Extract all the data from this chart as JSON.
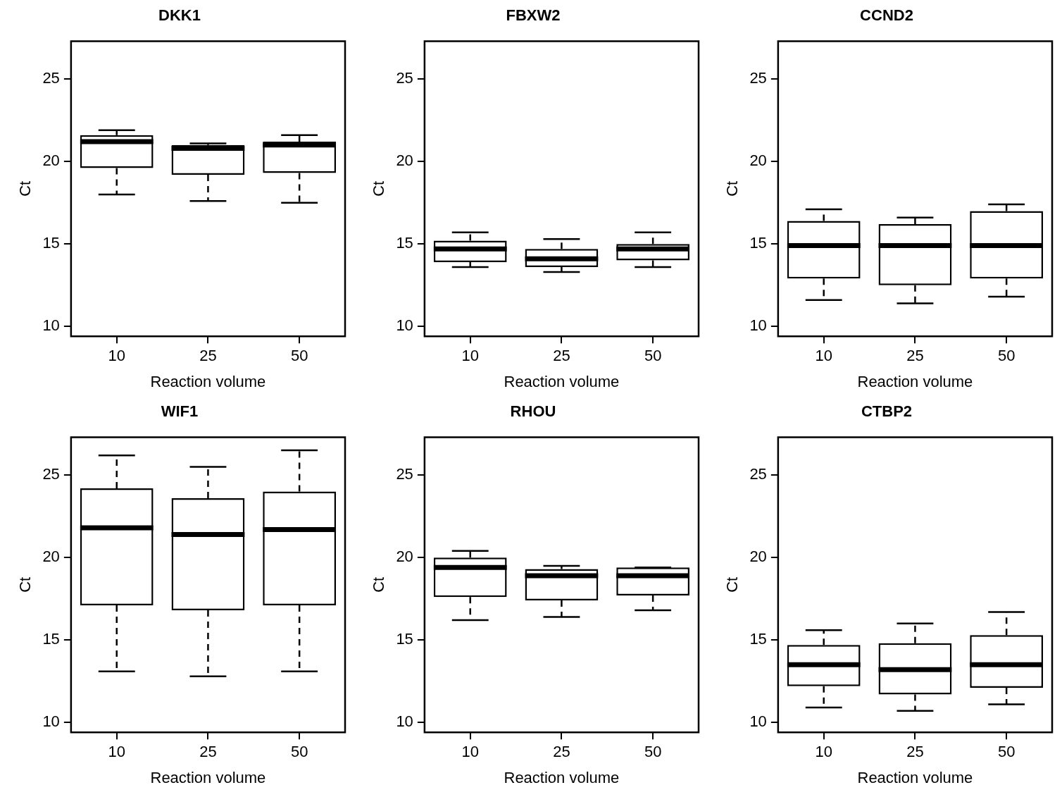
{
  "chart_data": [
    {
      "type": "box",
      "title": "DKK1",
      "xlabel": "Reaction volume",
      "ylabel": "Ct",
      "categories": [
        "10",
        "25",
        "50"
      ],
      "ylim": [
        9.4,
        27.3
      ],
      "yticks": [
        10,
        15,
        20,
        25
      ],
      "boxes": [
        {
          "low": 18.0,
          "q1": 19.6,
          "median": 21.2,
          "q3": 21.6,
          "high": 21.9
        },
        {
          "low": 17.6,
          "q1": 19.2,
          "median": 20.8,
          "q3": 21.0,
          "high": 21.1
        },
        {
          "low": 17.5,
          "q1": 19.3,
          "median": 21.0,
          "q3": 21.2,
          "high": 21.6
        }
      ]
    },
    {
      "type": "box",
      "title": "FBXW2",
      "xlabel": "Reaction volume",
      "ylabel": "Ct",
      "categories": [
        "10",
        "25",
        "50"
      ],
      "ylim": [
        9.4,
        27.3
      ],
      "yticks": [
        10,
        15,
        20,
        25
      ],
      "boxes": [
        {
          "low": 13.6,
          "q1": 13.9,
          "median": 14.7,
          "q3": 15.2,
          "high": 15.7
        },
        {
          "low": 13.3,
          "q1": 13.6,
          "median": 14.1,
          "q3": 14.7,
          "high": 15.3
        },
        {
          "low": 13.6,
          "q1": 14.0,
          "median": 14.7,
          "q3": 15.0,
          "high": 15.7
        }
      ]
    },
    {
      "type": "box",
      "title": "CCND2",
      "xlabel": "Reaction volume",
      "ylabel": "Ct",
      "categories": [
        "10",
        "25",
        "50"
      ],
      "ylim": [
        9.4,
        27.3
      ],
      "yticks": [
        10,
        15,
        20,
        25
      ],
      "boxes": [
        {
          "low": 11.6,
          "q1": 12.9,
          "median": 14.9,
          "q3": 16.4,
          "high": 17.1
        },
        {
          "low": 11.4,
          "q1": 12.5,
          "median": 14.9,
          "q3": 16.2,
          "high": 16.6
        },
        {
          "low": 11.8,
          "q1": 12.9,
          "median": 14.9,
          "q3": 17.0,
          "high": 17.4
        }
      ]
    },
    {
      "type": "box",
      "title": "WIF1",
      "xlabel": "Reaction volume",
      "ylabel": "Ct",
      "categories": [
        "10",
        "25",
        "50"
      ],
      "ylim": [
        9.4,
        27.3
      ],
      "yticks": [
        10,
        15,
        20,
        25
      ],
      "boxes": [
        {
          "low": 13.1,
          "q1": 17.1,
          "median": 21.8,
          "q3": 24.2,
          "high": 26.2
        },
        {
          "low": 12.8,
          "q1": 16.8,
          "median": 21.4,
          "q3": 23.6,
          "high": 25.5
        },
        {
          "low": 13.1,
          "q1": 17.1,
          "median": 21.7,
          "q3": 24.0,
          "high": 26.5
        }
      ]
    },
    {
      "type": "box",
      "title": "RHOU",
      "xlabel": "Reaction volume",
      "ylabel": "Ct",
      "categories": [
        "10",
        "25",
        "50"
      ],
      "ylim": [
        9.4,
        27.3
      ],
      "yticks": [
        10,
        15,
        20,
        25
      ],
      "boxes": [
        {
          "low": 16.2,
          "q1": 17.6,
          "median": 19.4,
          "q3": 20.0,
          "high": 20.4
        },
        {
          "low": 16.4,
          "q1": 17.4,
          "median": 18.9,
          "q3": 19.3,
          "high": 19.5
        },
        {
          "low": 16.8,
          "q1": 17.7,
          "median": 18.9,
          "q3": 19.4,
          "high": 19.4
        }
      ]
    },
    {
      "type": "box",
      "title": "CTBP2",
      "xlabel": "Reaction volume",
      "ylabel": "Ct",
      "categories": [
        "10",
        "25",
        "50"
      ],
      "ylim": [
        9.4,
        27.3
      ],
      "yticks": [
        10,
        15,
        20,
        25
      ],
      "boxes": [
        {
          "low": 10.9,
          "q1": 12.2,
          "median": 13.5,
          "q3": 14.7,
          "high": 15.6
        },
        {
          "low": 10.7,
          "q1": 11.7,
          "median": 13.2,
          "q3": 14.8,
          "high": 16.0
        },
        {
          "low": 11.1,
          "q1": 12.1,
          "median": 13.5,
          "q3": 15.3,
          "high": 16.7
        }
      ]
    }
  ]
}
